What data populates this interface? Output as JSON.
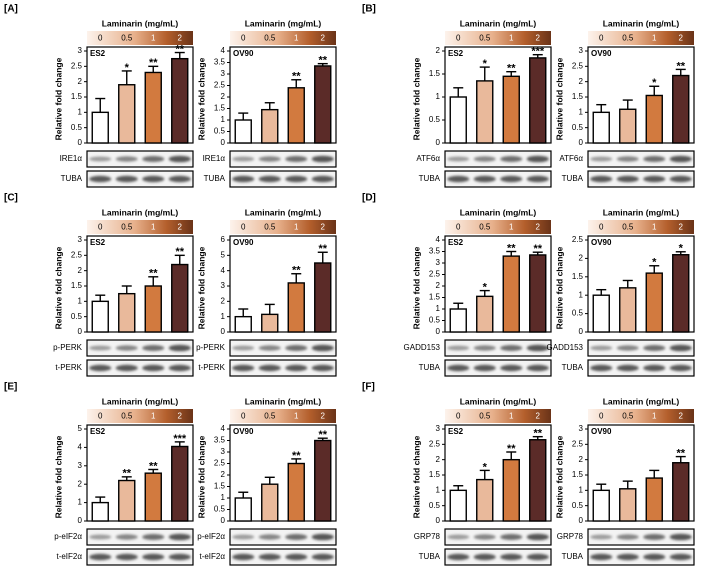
{
  "panel_labels": [
    "[A]",
    "[B]",
    "[C]",
    "[D]",
    "[E]",
    "[F]"
  ],
  "chart_data": [
    {
      "type": "bar",
      "title": "Laminarin (mg/mL)",
      "label": "ES2",
      "y_label": "Relative fold change",
      "categories": [
        "0",
        "0.5",
        "1",
        "2"
      ],
      "colors": [
        "#ffffff",
        "#e9b99b",
        "#d27a3f",
        "#5b2b28"
      ],
      "values": [
        1,
        1.9,
        2.3,
        2.75
      ],
      "errors": [
        0.45,
        0.45,
        0.2,
        0.2
      ],
      "stars": [
        null,
        "*",
        "**",
        "**"
      ],
      "ylim": [
        0,
        3
      ],
      "yticks": [
        0,
        0.5,
        1,
        1.5,
        2,
        2.5,
        3
      ],
      "blots": [
        "IRE1α",
        "TUBA"
      ]
    },
    {
      "type": "bar",
      "title": "Laminarin (mg/mL)",
      "label": "OV90",
      "y_label": "Relative fold change",
      "categories": [
        "0",
        "0.5",
        "1",
        "2"
      ],
      "colors": [
        "#ffffff",
        "#e9b99b",
        "#d27a3f",
        "#5b2b28"
      ],
      "values": [
        1,
        1.45,
        2.4,
        3.35
      ],
      "errors": [
        0.3,
        0.3,
        0.35,
        0.1
      ],
      "stars": [
        null,
        null,
        "**",
        "**"
      ],
      "ylim": [
        0,
        4
      ],
      "yticks": [
        0,
        0.5,
        1,
        1.5,
        2,
        2.5,
        3,
        3.5,
        4
      ],
      "blots": [
        "IRE1α",
        "TUBA"
      ]
    },
    {
      "type": "bar",
      "title": "Laminarin (mg/mL)",
      "label": "ES2",
      "y_label": "Relative fold change",
      "categories": [
        "0",
        "0.5",
        "1",
        "2"
      ],
      "colors": [
        "#ffffff",
        "#e9b99b",
        "#d27a3f",
        "#5b2b28"
      ],
      "values": [
        1,
        1.35,
        1.45,
        1.85
      ],
      "errors": [
        0.2,
        0.3,
        0.1,
        0.07
      ],
      "stars": [
        null,
        "*",
        "**",
        "***"
      ],
      "ylim": [
        0,
        2
      ],
      "yticks": [
        0,
        0.5,
        1,
        1.5,
        2
      ],
      "blots": [
        "ATF6α",
        "TUBA"
      ]
    },
    {
      "type": "bar",
      "title": "Laminarin (mg/mL)",
      "label": "OV90",
      "y_label": "Relative fold change",
      "categories": [
        "0",
        "0.5",
        "1",
        "2"
      ],
      "colors": [
        "#ffffff",
        "#e9b99b",
        "#d27a3f",
        "#5b2b28"
      ],
      "values": [
        1,
        1.1,
        1.55,
        2.2
      ],
      "errors": [
        0.25,
        0.3,
        0.3,
        0.2
      ],
      "stars": [
        null,
        null,
        "*",
        "**"
      ],
      "ylim": [
        0,
        3
      ],
      "yticks": [
        0,
        0.5,
        1,
        1.5,
        2,
        2.5,
        3
      ],
      "blots": [
        "ATF6α",
        "TUBA"
      ]
    },
    {
      "type": "bar",
      "title": "Laminarin (mg/mL)",
      "label": "ES2",
      "y_label": "Relative fold change",
      "categories": [
        "0",
        "0.5",
        "1",
        "2"
      ],
      "colors": [
        "#ffffff",
        "#e9b99b",
        "#d27a3f",
        "#5b2b28"
      ],
      "values": [
        1,
        1.25,
        1.5,
        2.2
      ],
      "errors": [
        0.2,
        0.25,
        0.3,
        0.3
      ],
      "stars": [
        null,
        null,
        "**",
        "**"
      ],
      "ylim": [
        0,
        3
      ],
      "yticks": [
        0,
        0.5,
        1,
        1.5,
        2,
        2.5,
        3
      ],
      "blots": [
        "p-PERK",
        "t-PERK"
      ]
    },
    {
      "type": "bar",
      "title": "Laminarin (mg/mL)",
      "label": "OV90",
      "y_label": "Relative fold change",
      "categories": [
        "0",
        "0.5",
        "1",
        "2"
      ],
      "colors": [
        "#ffffff",
        "#e9b99b",
        "#d27a3f",
        "#5b2b28"
      ],
      "values": [
        1,
        1.15,
        3.2,
        4.5
      ],
      "errors": [
        0.5,
        0.65,
        0.6,
        0.7
      ],
      "stars": [
        null,
        null,
        "**",
        "**"
      ],
      "ylim": [
        0,
        6
      ],
      "yticks": [
        0,
        1,
        2,
        3,
        4,
        5,
        6
      ],
      "blots": [
        "p-PERK",
        "t-PERK"
      ]
    },
    {
      "type": "bar",
      "title": "Laminarin (mg/mL)",
      "label": "ES2",
      "y_label": "Relative fold change",
      "categories": [
        "0",
        "0.5",
        "1",
        "2"
      ],
      "colors": [
        "#ffffff",
        "#e9b99b",
        "#d27a3f",
        "#5b2b28"
      ],
      "values": [
        1,
        1.55,
        3.3,
        3.35
      ],
      "errors": [
        0.25,
        0.25,
        0.2,
        0.12
      ],
      "stars": [
        null,
        "*",
        "**",
        "**"
      ],
      "ylim": [
        0,
        4
      ],
      "yticks": [
        0,
        0.5,
        1,
        1.5,
        2,
        2.5,
        3,
        3.5,
        4
      ],
      "blots": [
        "GADD153",
        "TUBA"
      ]
    },
    {
      "type": "bar",
      "title": "Laminarin (mg/mL)",
      "label": "OV90",
      "y_label": "Relative fold change",
      "categories": [
        "0",
        "0.5",
        "1",
        "2"
      ],
      "colors": [
        "#ffffff",
        "#e9b99b",
        "#d27a3f",
        "#5b2b28"
      ],
      "values": [
        1,
        1.2,
        1.6,
        2.1
      ],
      "errors": [
        0.15,
        0.2,
        0.2,
        0.08
      ],
      "stars": [
        null,
        null,
        "*",
        "*"
      ],
      "ylim": [
        0,
        2.5
      ],
      "yticks": [
        0,
        0.5,
        1,
        1.5,
        2,
        2.5
      ],
      "blots": [
        "GADD153",
        "TUBA"
      ]
    },
    {
      "type": "bar",
      "title": "Laminarin (mg/mL)",
      "label": "ES2",
      "y_label": "Relative fold change",
      "categories": [
        "0",
        "0.5",
        "1",
        "2"
      ],
      "colors": [
        "#ffffff",
        "#e9b99b",
        "#d27a3f",
        "#5b2b28"
      ],
      "values": [
        1,
        2.2,
        2.6,
        4.05
      ],
      "errors": [
        0.3,
        0.2,
        0.2,
        0.25
      ],
      "stars": [
        null,
        "**",
        "**",
        "***"
      ],
      "ylim": [
        0,
        5
      ],
      "yticks": [
        0,
        1,
        2,
        3,
        4,
        5
      ],
      "blots": [
        "p-eIF2α",
        "t-eIF2α"
      ]
    },
    {
      "type": "bar",
      "title": "Laminarin (mg/mL)",
      "label": "OV90",
      "y_label": "Relative fold change",
      "categories": [
        "0",
        "0.5",
        "1",
        "2"
      ],
      "colors": [
        "#ffffff",
        "#e9b99b",
        "#d27a3f",
        "#5b2b28"
      ],
      "values": [
        1,
        1.6,
        2.5,
        3.5
      ],
      "errors": [
        0.25,
        0.3,
        0.2,
        0.1
      ],
      "stars": [
        null,
        null,
        "**",
        "**"
      ],
      "ylim": [
        0,
        4
      ],
      "yticks": [
        0,
        0.5,
        1,
        1.5,
        2,
        2.5,
        3,
        3.5,
        4
      ],
      "blots": [
        "p-eIF2α",
        "t-eIF2α"
      ]
    },
    {
      "type": "bar",
      "title": "Laminarin (mg/mL)",
      "label": "ES2",
      "y_label": "Relative fold change",
      "categories": [
        "0",
        "0.5",
        "1",
        "2"
      ],
      "colors": [
        "#ffffff",
        "#e9b99b",
        "#d27a3f",
        "#5b2b28"
      ],
      "values": [
        1,
        1.35,
        2.0,
        2.65
      ],
      "errors": [
        0.15,
        0.3,
        0.25,
        0.1
      ],
      "stars": [
        null,
        "*",
        "**",
        "**"
      ],
      "ylim": [
        0,
        3
      ],
      "yticks": [
        0,
        0.5,
        1,
        1.5,
        2,
        2.5,
        3
      ],
      "blots": [
        "GRP78",
        "TUBA"
      ]
    },
    {
      "type": "bar",
      "title": "Laminarin (mg/mL)",
      "label": "OV90",
      "y_label": "Relative fold change",
      "categories": [
        "0",
        "0.5",
        "1",
        "2"
      ],
      "colors": [
        "#ffffff",
        "#e9b99b",
        "#d27a3f",
        "#5b2b28"
      ],
      "values": [
        1,
        1.05,
        1.4,
        1.9
      ],
      "errors": [
        0.2,
        0.25,
        0.25,
        0.2
      ],
      "stars": [
        null,
        null,
        null,
        "**"
      ],
      "ylim": [
        0,
        3
      ],
      "yticks": [
        0,
        0.5,
        1,
        1.5,
        2,
        2.5,
        3
      ],
      "blots": [
        "GRP78",
        "TUBA"
      ]
    }
  ]
}
